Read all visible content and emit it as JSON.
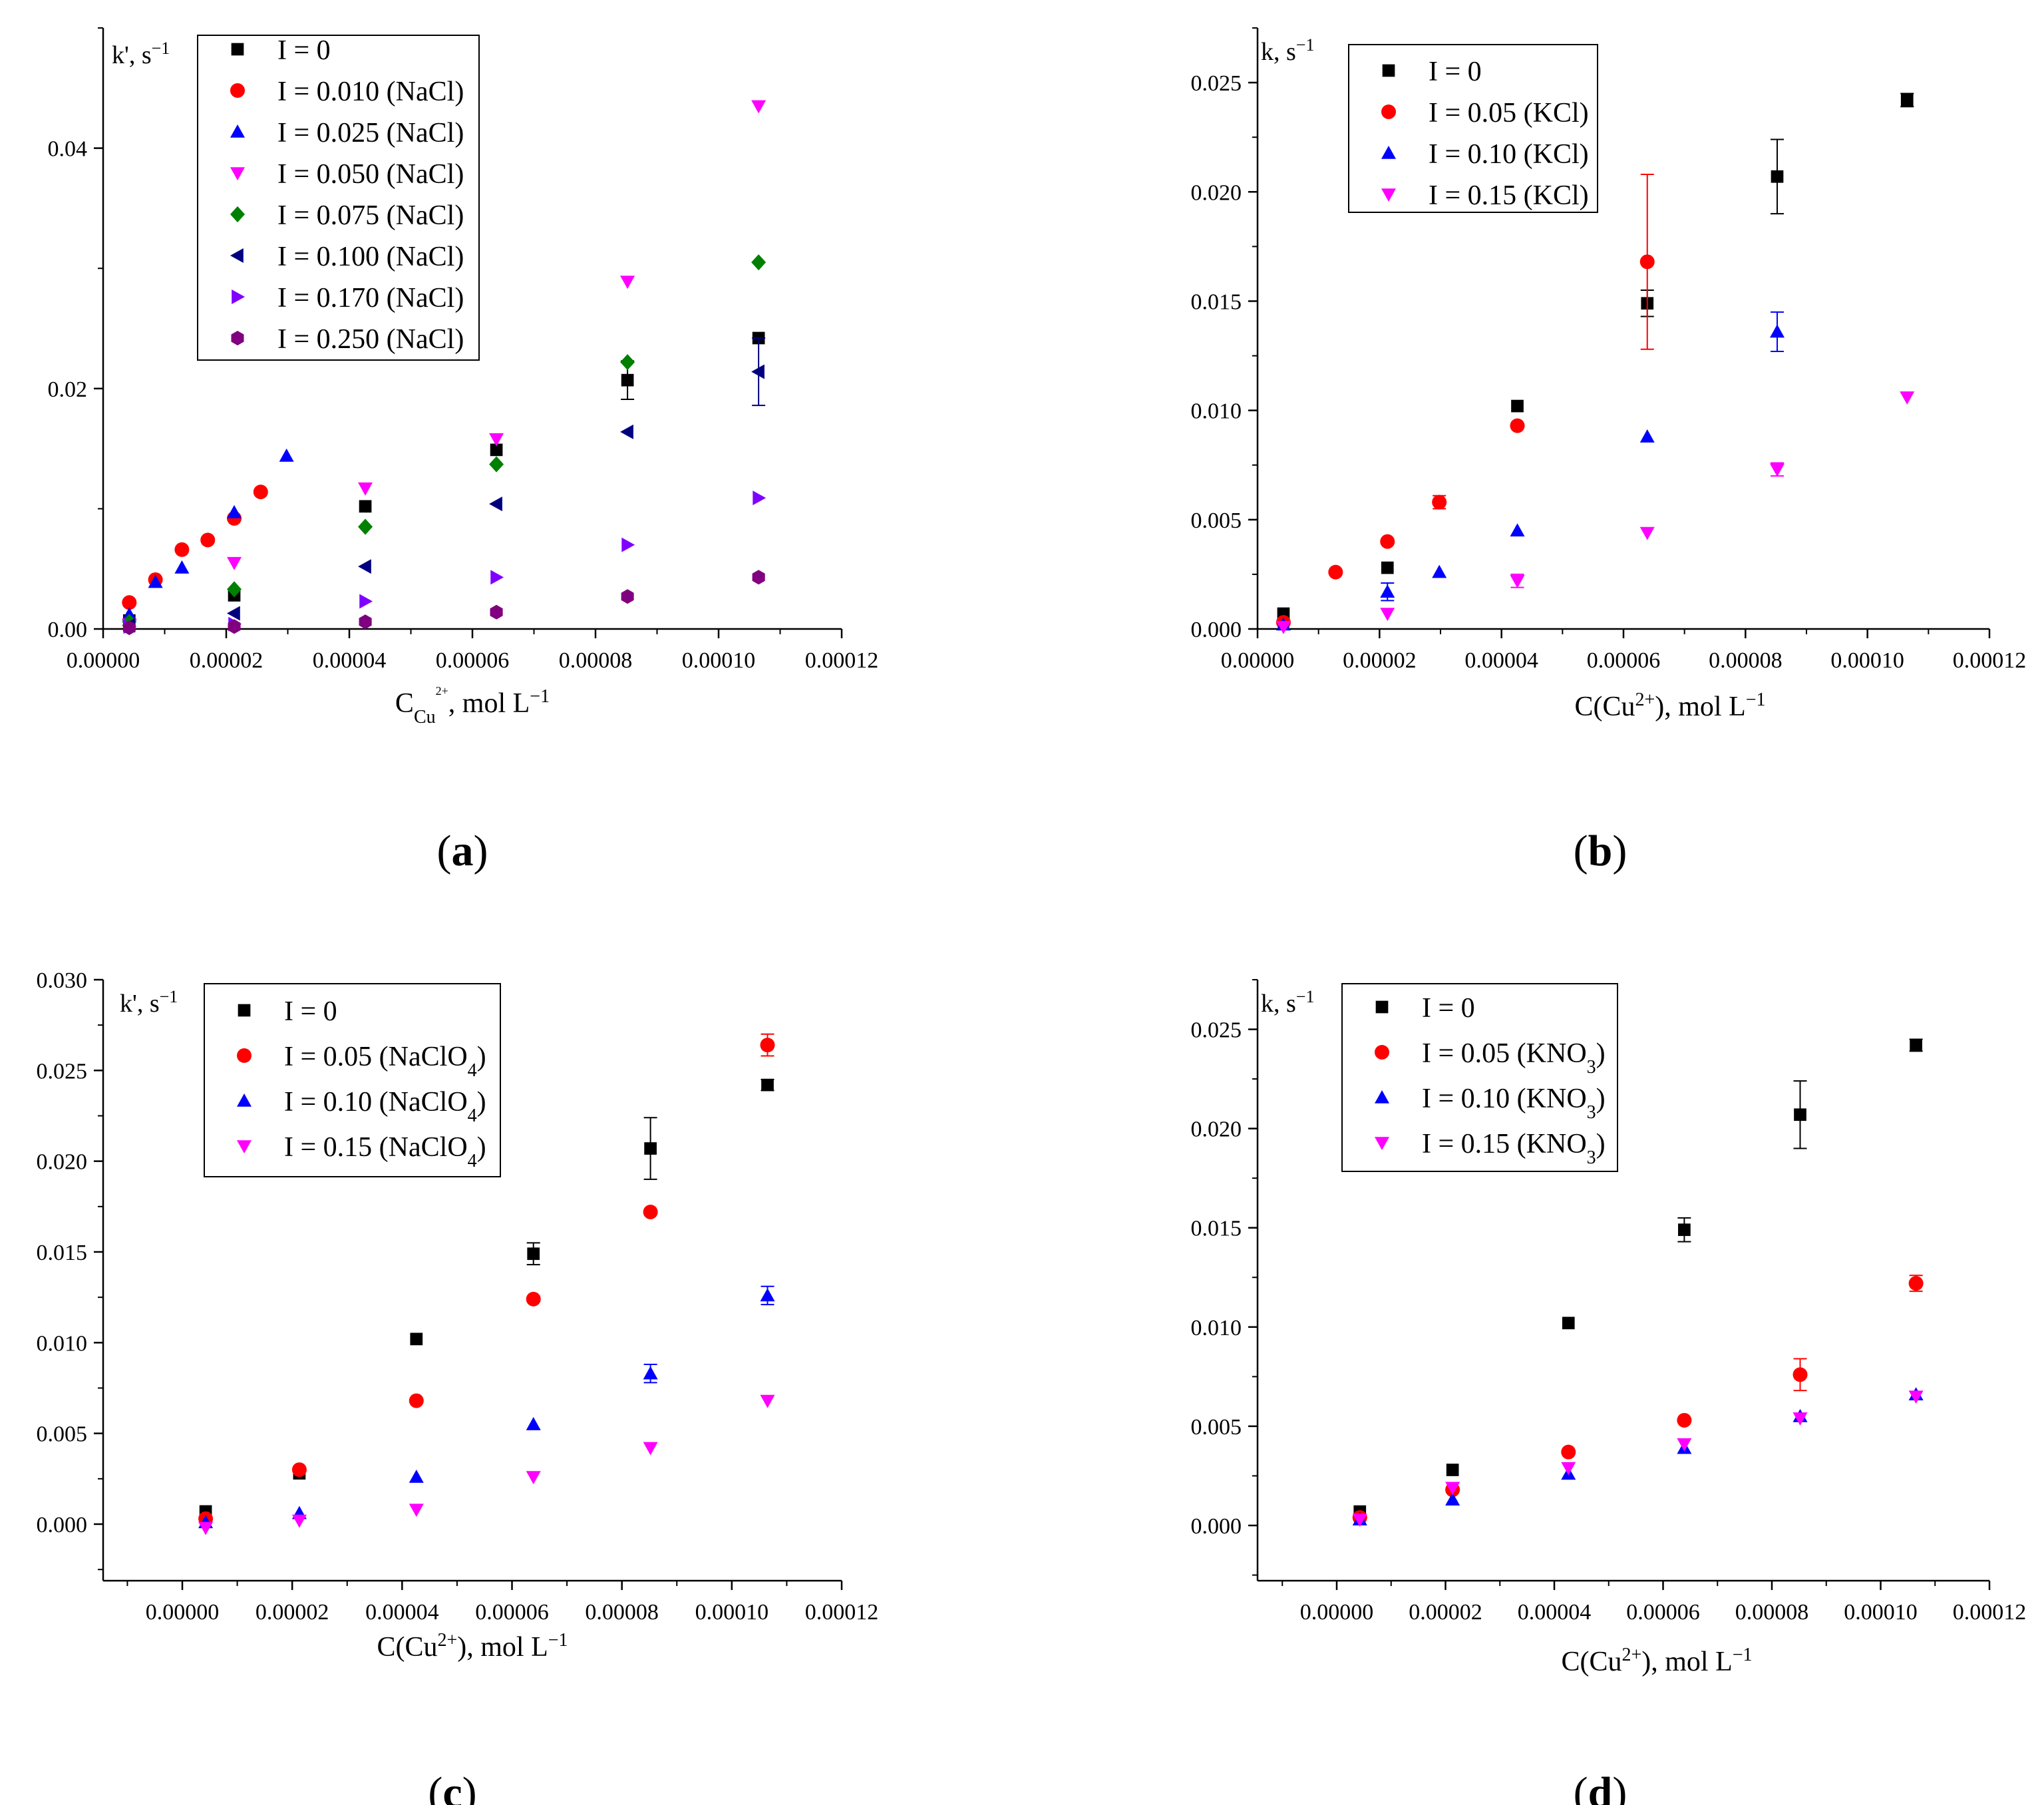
{
  "figure_labels": [
    "(a)",
    "(b)",
    "(c)",
    "(d)"
  ],
  "colors": {
    "black": "#000000",
    "red": "#ff0000",
    "blue": "#0000ff",
    "magenta": "#ff00ff",
    "green": "#008000",
    "navy": "#000080",
    "violet": "#8000ff",
    "purple": "#800080"
  },
  "chart_data": [
    {
      "id": "a",
      "type": "scatter",
      "panel_label": "(a)",
      "corner_label": "k', s",
      "corner_sup": "−1",
      "xlabel": {
        "base": "C",
        "sub": "Cu",
        "subsup": "2+",
        "rest": ", mol L",
        "sup": "−1"
      },
      "xlim": [
        0,
        0.00012
      ],
      "ylim": [
        0,
        0.05
      ],
      "xticks": [
        "0.00000",
        "0.00002",
        "0.00004",
        "0.00006",
        "0.00008",
        "0.00010",
        "0.00012"
      ],
      "xtick_values": [
        0,
        2e-05,
        4e-05,
        6e-05,
        8e-05,
        0.0001,
        0.00012
      ],
      "yticks": [
        "0.00",
        "0.02",
        "0.04"
      ],
      "ytick_values": [
        0,
        0.02,
        0.04
      ],
      "legend_position": "top-left",
      "series": [
        {
          "name": "I = 0",
          "label": {
            "text": "I = 0"
          },
          "marker": "square",
          "color": "#000000",
          "x": [
            4.25e-06,
            2.13e-05,
            4.26e-05,
            6.39e-05,
            8.52e-05,
            0.0001065
          ],
          "y": [
            0.0007,
            0.0028,
            0.0102,
            0.0149,
            0.0207,
            0.0242
          ],
          "err": [
            0,
            0,
            0,
            0,
            0.0016,
            0
          ]
        },
        {
          "name": "I = 0.010 (NaCl)",
          "label": {
            "text": "I = 0.010 (NaCl)"
          },
          "marker": "circle",
          "color": "#ff0000",
          "x": [
            4.25e-06,
            8.5e-06,
            1.28e-05,
            1.7e-05,
            2.13e-05,
            2.56e-05
          ],
          "y": [
            0.0022,
            0.0041,
            0.0066,
            0.0074,
            0.0092,
            0.0114
          ],
          "err": [
            0,
            0,
            0,
            0,
            0,
            0
          ]
        },
        {
          "name": "I = 0.025 (NaCl)",
          "label": {
            "text": "I = 0.025 (NaCl)"
          },
          "marker": "triangle-up",
          "color": "#0000ff",
          "x": [
            4.25e-06,
            8.5e-06,
            1.28e-05,
            2.13e-05,
            2.98e-05
          ],
          "y": [
            0.0012,
            0.0039,
            0.0051,
            0.0097,
            0.0144
          ],
          "err": [
            0,
            0,
            0,
            0,
            0
          ]
        },
        {
          "name": "I = 0.050 (NaCl)",
          "label": {
            "text": "I = 0.050 (NaCl)"
          },
          "marker": "triangle-down",
          "color": "#ff00ff",
          "x": [
            4.25e-06,
            2.13e-05,
            4.26e-05,
            6.39e-05,
            8.52e-05,
            0.0001065
          ],
          "y": [
            0.0004,
            0.0055,
            0.0117,
            0.0158,
            0.0289,
            0.0435
          ],
          "err": [
            0,
            0,
            0,
            0,
            0,
            0
          ]
        },
        {
          "name": "I = 0.075 (NaCl)",
          "label": {
            "text": "I = 0.075 (NaCl)"
          },
          "marker": "diamond",
          "color": "#008000",
          "x": [
            4.25e-06,
            2.13e-05,
            4.26e-05,
            6.39e-05,
            8.52e-05,
            0.0001065
          ],
          "y": [
            0.0006,
            0.0033,
            0.0085,
            0.0137,
            0.0222,
            0.0305
          ],
          "err": [
            0,
            0,
            0,
            0,
            0,
            0
          ]
        },
        {
          "name": "I = 0.100 (NaCl)",
          "label": {
            "text": "I = 0.100 (NaCl)"
          },
          "marker": "triangle-left",
          "color": "#000080",
          "x": [
            4.25e-06,
            2.13e-05,
            4.26e-05,
            6.39e-05,
            8.52e-05,
            0.0001065
          ],
          "y": [
            0.0003,
            0.0013,
            0.0052,
            0.0104,
            0.0164,
            0.0214
          ],
          "err": [
            0,
            0,
            0,
            0,
            0,
            0.0028
          ]
        },
        {
          "name": "I = 0.170 (NaCl)",
          "label": {
            "text": "I = 0.170 (NaCl)"
          },
          "marker": "triangle-right",
          "color": "#8000ff",
          "x": [
            4.25e-06,
            2.13e-05,
            4.26e-05,
            6.39e-05,
            8.52e-05,
            0.0001065
          ],
          "y": [
            0.0002,
            0.0004,
            0.0023,
            0.0043,
            0.007,
            0.0109
          ],
          "err": [
            0,
            0,
            0,
            0,
            0,
            0
          ]
        },
        {
          "name": "I = 0.250 (NaCl)",
          "label": {
            "text": "I = 0.250 (NaCl)"
          },
          "marker": "hexagon",
          "color": "#800080",
          "x": [
            4.25e-06,
            2.13e-05,
            4.26e-05,
            6.39e-05,
            8.52e-05,
            0.0001065
          ],
          "y": [
            0.0001,
            0.0002,
            0.0006,
            0.0014,
            0.0027,
            0.0043
          ],
          "err": [
            0,
            0,
            0,
            0,
            0,
            0
          ]
        }
      ]
    },
    {
      "id": "b",
      "type": "scatter",
      "panel_label": "(b)",
      "corner_label": "k, s",
      "corner_sup": "−1",
      "xlabel": {
        "base": "C(Cu",
        "sup1": "2+",
        "rest": "), mol L",
        "sup": "−1"
      },
      "xlim": [
        0,
        0.00012
      ],
      "ylim": [
        0,
        0.0275
      ],
      "xticks": [
        "0.00000",
        "0.00002",
        "0.00004",
        "0.00006",
        "0.00008",
        "0.00010",
        "0.00012"
      ],
      "xtick_values": [
        0,
        2e-05,
        4e-05,
        6e-05,
        8e-05,
        0.0001,
        0.00012
      ],
      "yticks": [
        "0.000",
        "0.005",
        "0.010",
        "0.015",
        "0.020",
        "0.025"
      ],
      "ytick_values": [
        0,
        0.005,
        0.01,
        0.015,
        0.02,
        0.025
      ],
      "legend_position": "top-left",
      "series": [
        {
          "name": "I = 0",
          "label": {
            "text": "I = 0"
          },
          "marker": "square",
          "color": "#000000",
          "x": [
            4.25e-06,
            2.13e-05,
            4.26e-05,
            6.39e-05,
            8.52e-05,
            0.0001065
          ],
          "y": [
            0.0007,
            0.0028,
            0.0102,
            0.0149,
            0.0207,
            0.0242
          ],
          "err": [
            0,
            0,
            0,
            0.0006,
            0.0017,
            0.0003
          ]
        },
        {
          "name": "I = 0.05 (KCl)",
          "label": {
            "text": "I = 0.05 (KCl)"
          },
          "marker": "circle",
          "color": "#ff0000",
          "x": [
            4.25e-06,
            1.28e-05,
            2.13e-05,
            2.98e-05,
            4.26e-05,
            6.39e-05
          ],
          "y": [
            0.0003,
            0.0026,
            0.004,
            0.0058,
            0.0093,
            0.0168
          ],
          "err": [
            0,
            0,
            0,
            0.0003,
            0,
            0.004
          ]
        },
        {
          "name": "I = 0.10 (KCl)",
          "label": {
            "text": "I = 0.10 (KCl)"
          },
          "marker": "triangle-up",
          "color": "#0000ff",
          "x": [
            4.25e-06,
            2.13e-05,
            2.98e-05,
            4.26e-05,
            6.39e-05,
            8.52e-05
          ],
          "y": [
            0.0002,
            0.0017,
            0.0026,
            0.0045,
            0.0088,
            0.0136
          ],
          "err": [
            0,
            0.0004,
            0,
            0,
            0,
            0.0009
          ]
        },
        {
          "name": "I = 0.15 (KCl)",
          "label": {
            "text": "I = 0.15 (KCl)"
          },
          "marker": "triangle-down",
          "color": "#ff00ff",
          "x": [
            4.25e-06,
            2.13e-05,
            4.26e-05,
            6.39e-05,
            8.52e-05,
            0.0001065
          ],
          "y": [
            0.0001,
            0.0007,
            0.0022,
            0.0044,
            0.0073,
            0.0106
          ],
          "err": [
            0,
            0,
            0.0003,
            0,
            0.0003,
            0
          ]
        }
      ]
    },
    {
      "id": "c",
      "type": "scatter",
      "panel_label": "(c)",
      "corner_label": "k', s",
      "corner_sup": "−1",
      "xlabel": {
        "base": "C(Cu",
        "sup1": "2+",
        "rest": "), mol L",
        "sup": "−1"
      },
      "xlim": [
        -6.5e-06,
        0.00012
      ],
      "ylim": [
        -0.0025,
        0.03
      ],
      "xticks": [
        "0.00000",
        "0.00002",
        "0.00004",
        "0.00006",
        "0.00008",
        "0.00010",
        "0.00012"
      ],
      "xtick_values": [
        0,
        2e-05,
        4e-05,
        6e-05,
        8e-05,
        0.0001,
        0.00012
      ],
      "yticks": [
        "0.000",
        "0.005",
        "0.010",
        "0.015",
        "0.020",
        "0.025",
        "0.030"
      ],
      "ytick_values": [
        0,
        0.005,
        0.01,
        0.015,
        0.02,
        0.025,
        0.03
      ],
      "legend_position": "top-left",
      "series": [
        {
          "name": "I = 0",
          "label": {
            "text": "I = 0"
          },
          "marker": "square",
          "color": "#000000",
          "x": [
            4.25e-06,
            2.13e-05,
            4.26e-05,
            6.39e-05,
            8.52e-05,
            0.0001065
          ],
          "y": [
            0.0007,
            0.0028,
            0.0102,
            0.0149,
            0.0207,
            0.0242
          ],
          "err": [
            0,
            0,
            0,
            0.0006,
            0.0017,
            0.0003
          ]
        },
        {
          "name": "I = 0.05 (NaClO4)",
          "label": {
            "text": "I = 0.05 (NaClO",
            "sub": "4",
            "tail": ")"
          },
          "marker": "circle",
          "color": "#ff0000",
          "x": [
            4.25e-06,
            2.13e-05,
            4.26e-05,
            6.39e-05,
            8.52e-05,
            0.0001065
          ],
          "y": [
            0.0003,
            0.003,
            0.0068,
            0.0124,
            0.0172,
            0.0264
          ],
          "err": [
            0,
            0,
            0,
            0,
            0,
            0.0006
          ]
        },
        {
          "name": "I = 0.10 (NaClO4)",
          "label": {
            "text": "I = 0.10 (NaClO",
            "sub": "4",
            "tail": ")"
          },
          "marker": "triangle-up",
          "color": "#0000ff",
          "x": [
            4.25e-06,
            2.13e-05,
            4.26e-05,
            6.39e-05,
            8.52e-05,
            0.0001065
          ],
          "y": [
            0.0001,
            0.0006,
            0.0026,
            0.0055,
            0.0083,
            0.0126
          ],
          "err": [
            0,
            0,
            0,
            0,
            0.0005,
            0.0005
          ]
        },
        {
          "name": "I = 0.15 (NaClO4)",
          "label": {
            "text": "I = 0.15 (NaClO",
            "sub": "4",
            "tail": ")"
          },
          "marker": "triangle-down",
          "color": "#ff00ff",
          "x": [
            4.25e-06,
            2.13e-05,
            4.26e-05,
            6.39e-05,
            8.52e-05,
            0.0001065
          ],
          "y": [
            -0.0002,
            0.0002,
            0.0008,
            0.0026,
            0.0042,
            0.0068
          ],
          "err": [
            0,
            0,
            0,
            0,
            0,
            0
          ]
        }
      ]
    },
    {
      "id": "d",
      "type": "scatter",
      "panel_label": "(d)",
      "corner_label": "k, s",
      "corner_sup": "−1",
      "xlabel": {
        "base": "C(Cu",
        "sup1": "2+",
        "rest": "), mol L",
        "sup": "−1"
      },
      "xlim": [
        -6.5e-06,
        0.00012
      ],
      "ylim": [
        -0.0025,
        0.0275
      ],
      "xticks": [
        "0.00000",
        "0.00002",
        "0.00004",
        "0.00006",
        "0.00008",
        "0.00010",
        "0.00012"
      ],
      "xtick_values": [
        0,
        2e-05,
        4e-05,
        6e-05,
        8e-05,
        0.0001,
        0.00012
      ],
      "yticks": [
        "0.000",
        "0.005",
        "0.010",
        "0.015",
        "0.020",
        "0.025"
      ],
      "ytick_values": [
        0,
        0.005,
        0.01,
        0.015,
        0.02,
        0.025
      ],
      "legend_position": "top-left",
      "series": [
        {
          "name": "I = 0",
          "label": {
            "text": "I = 0"
          },
          "marker": "square",
          "color": "#000000",
          "x": [
            4.25e-06,
            2.13e-05,
            4.26e-05,
            6.39e-05,
            8.52e-05,
            0.0001065
          ],
          "y": [
            0.0007,
            0.0028,
            0.0102,
            0.0149,
            0.0207,
            0.0242
          ],
          "err": [
            0,
            0,
            0,
            0.0006,
            0.0017,
            0.0003
          ]
        },
        {
          "name": "I = 0.05 (KNO3)",
          "label": {
            "text": "I = 0.05 (KNO",
            "sub": "3",
            "tail": ")"
          },
          "marker": "circle",
          "color": "#ff0000",
          "x": [
            4.25e-06,
            2.13e-05,
            4.26e-05,
            6.39e-05,
            8.52e-05,
            0.0001065
          ],
          "y": [
            0.0004,
            0.0018,
            0.0037,
            0.0053,
            0.0076,
            0.0122
          ],
          "err": [
            0,
            0,
            0,
            0,
            0.0008,
            0.0004
          ]
        },
        {
          "name": "I = 0.10 (KNO3)",
          "label": {
            "text": "I = 0.10 (KNO",
            "sub": "3",
            "tail": ")"
          },
          "marker": "triangle-up",
          "color": "#0000ff",
          "x": [
            4.25e-06,
            2.13e-05,
            4.26e-05,
            6.39e-05,
            8.52e-05,
            0.0001065
          ],
          "y": [
            0.0003,
            0.0013,
            0.0026,
            0.0039,
            0.0055,
            0.0066
          ],
          "err": [
            0,
            0,
            0,
            0,
            0,
            0
          ]
        },
        {
          "name": "I = 0.15 (KNO3)",
          "label": {
            "text": "I = 0.15 (KNO",
            "sub": "3",
            "tail": ")"
          },
          "marker": "triangle-down",
          "color": "#ff00ff",
          "x": [
            4.25e-06,
            2.13e-05,
            4.26e-05,
            6.39e-05,
            8.52e-05,
            0.0001065
          ],
          "y": [
            0.0003,
            0.0019,
            0.0029,
            0.0041,
            0.0054,
            0.0065
          ],
          "err": [
            0,
            0,
            0,
            0,
            0,
            0
          ]
        }
      ]
    }
  ]
}
